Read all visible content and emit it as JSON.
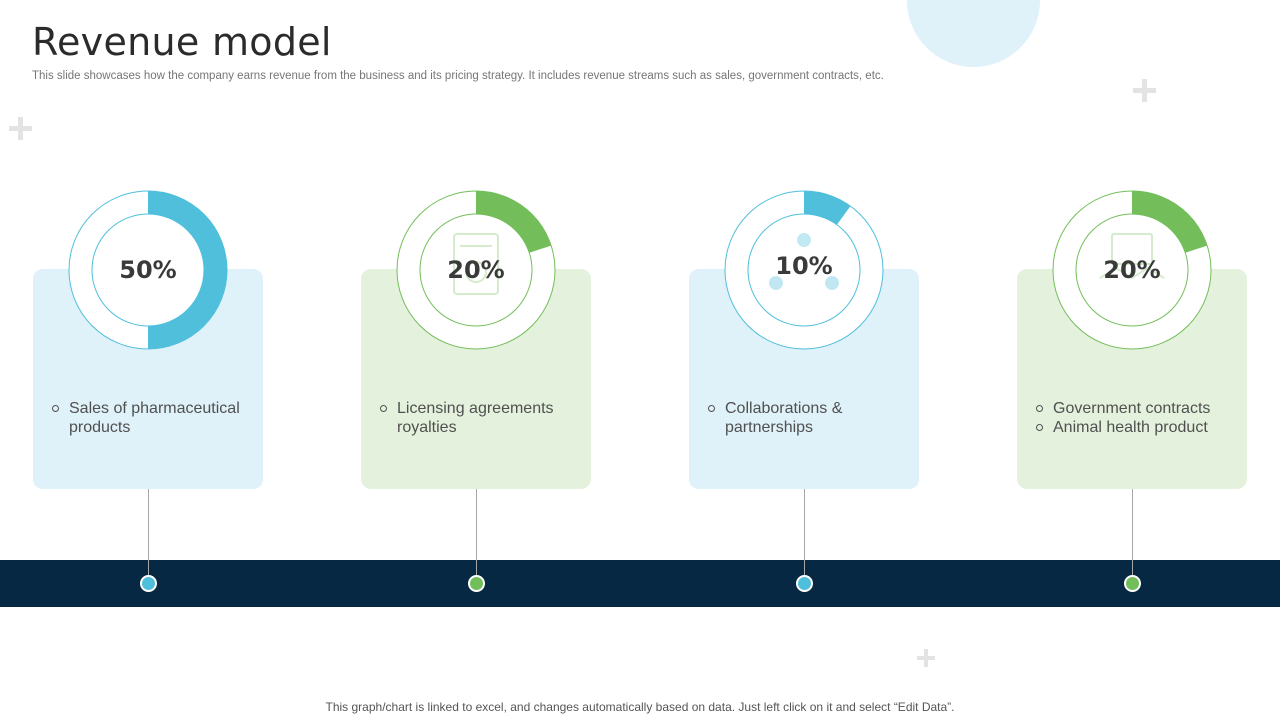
{
  "header": {
    "title": "Revenue model",
    "subtitle": "This slide showcases how the company earns revenue from the business and its pricing strategy. It includes revenue streams such as sales, government contracts, etc."
  },
  "footer": {
    "note": "This graph/chart is linked to excel, and changes automatically based on data. Just left click on it and select “Edit Data”."
  },
  "colors": {
    "blue": "#4fbfdc",
    "green": "#73be5a",
    "band": "#062842"
  },
  "chart_data": {
    "type": "pie",
    "title": "",
    "items": [
      {
        "label": "50%",
        "value": 50,
        "color": "#4fbfdc",
        "icon": "certificate-icon",
        "bullets": [
          "Sales of pharmaceutical products"
        ]
      },
      {
        "label": "20%",
        "value": 20,
        "color": "#73be5a",
        "icon": "license-document-icon",
        "bullets": [
          "Licensing agreements royalties"
        ]
      },
      {
        "label": "10%",
        "value": 10,
        "color": "#4fbfdc",
        "icon": "team-network-icon",
        "bullets": [
          "Collaborations & partnerships"
        ]
      },
      {
        "label": "20%",
        "value": 20,
        "color": "#73be5a",
        "icon": "handshake-contract-icon",
        "bullets": [
          "Government contracts",
          "Animal health product"
        ]
      }
    ]
  }
}
